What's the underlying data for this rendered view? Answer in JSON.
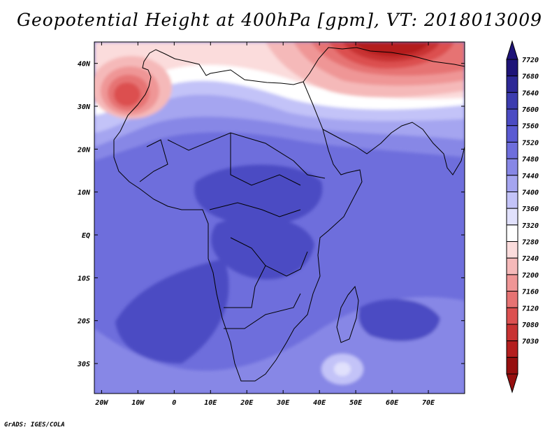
{
  "title": "Geopotential Height at 400hPa [gpm], VT: 2018013009",
  "credit": "GrADS: IGES/COLA",
  "map": {
    "variable": "Geopotential Height",
    "level": "400hPa",
    "units": "gpm",
    "valid_time": "2018013009",
    "lon_range": [
      -22,
      80
    ],
    "lat_range": [
      -37,
      45
    ],
    "lat_labels": [
      {
        "value": 40,
        "text": "40N"
      },
      {
        "value": 30,
        "text": "30N"
      },
      {
        "value": 20,
        "text": "20N"
      },
      {
        "value": 10,
        "text": "10N"
      },
      {
        "value": 0,
        "text": "EQ"
      },
      {
        "value": -10,
        "text": "10S"
      },
      {
        "value": -20,
        "text": "20S"
      },
      {
        "value": -30,
        "text": "30S"
      }
    ],
    "lon_labels": [
      {
        "value": -20,
        "text": "20W"
      },
      {
        "value": -10,
        "text": "10W"
      },
      {
        "value": 0,
        "text": "0"
      },
      {
        "value": 10,
        "text": "10E"
      },
      {
        "value": 20,
        "text": "20E"
      },
      {
        "value": 30,
        "text": "30E"
      },
      {
        "value": 40,
        "text": "40E"
      },
      {
        "value": 50,
        "text": "50E"
      },
      {
        "value": 60,
        "text": "60E"
      },
      {
        "value": 70,
        "text": "70E"
      }
    ]
  },
  "colorbar": {
    "labels": [
      "7720",
      "7680",
      "7640",
      "7600",
      "7560",
      "7520",
      "7480",
      "7440",
      "7400",
      "7360",
      "7320",
      "7280",
      "7240",
      "7200",
      "7160",
      "7120",
      "7080",
      "7030"
    ],
    "colors": [
      "#1e1478",
      "#2d2896",
      "#3c3caf",
      "#4b4bc3",
      "#5a5ad2",
      "#6e6edc",
      "#8787e6",
      "#a5a5f0",
      "#c3c3f8",
      "#e1e1fc",
      "#ffffff",
      "#fbdcdc",
      "#f5b9b9",
      "#ef9696",
      "#e67373",
      "#dc5050",
      "#c83232",
      "#b41e1e",
      "#960f0f"
    ],
    "top_arrow_color": "#1e1478",
    "bottom_arrow_color": "#960f0f"
  },
  "chart_data": {
    "type": "heatmap",
    "title": "Geopotential Height at 400hPa [gpm], VT: 2018013009",
    "units": "gpm",
    "contour_levels": [
      7030,
      7080,
      7120,
      7160,
      7200,
      7240,
      7280,
      7320,
      7360,
      7400,
      7440,
      7480,
      7520,
      7560,
      7600,
      7640,
      7680,
      7720
    ],
    "x": {
      "label": "longitude",
      "range": [
        -22,
        80
      ]
    },
    "y": {
      "label": "latitude",
      "range": [
        -37,
        45
      ]
    },
    "features": [
      {
        "name": "subtropical ridge over central Africa",
        "lon": 20,
        "lat": 8,
        "approx_value": 7610
      },
      {
        "name": "high over southern Atlantic",
        "lon": 0,
        "lat": -14,
        "approx_value": 7590
      },
      {
        "name": "high over southern Indian Ocean",
        "lon": 65,
        "lat": -20,
        "approx_value": 7590
      },
      {
        "name": "low over Arabia / Iran",
        "lon": 55,
        "lat": 43,
        "approx_value": 7050
      },
      {
        "name": "low over Morocco",
        "lon": -12,
        "lat": 31,
        "approx_value": 7140
      }
    ]
  }
}
